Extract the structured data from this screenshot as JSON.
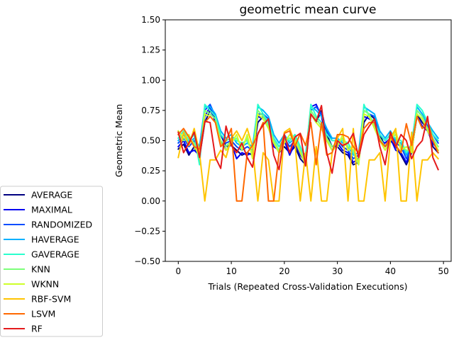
{
  "chart_data": {
    "type": "line",
    "title": "geometric mean curve",
    "xlabel": "Trials (Repeated Cross-Validation Executions)",
    "ylabel": "Geometric Mean",
    "xlim": [
      -2.45,
      51.45
    ],
    "ylim": [
      -0.5,
      1.5
    ],
    "xticks": [
      0,
      10,
      20,
      30,
      40,
      50
    ],
    "yticks": [
      -0.5,
      -0.25,
      0.0,
      0.25,
      0.5,
      0.75,
      1.0,
      1.25,
      1.5
    ],
    "ytick_labels": [
      "−0.50",
      "−0.25",
      "0.00",
      "0.25",
      "0.50",
      "0.75",
      "1.00",
      "1.25",
      "1.50"
    ],
    "grid": false,
    "legend_position": "outside-left-bottom",
    "x": [
      0,
      1,
      2,
      3,
      4,
      5,
      6,
      7,
      8,
      9,
      10,
      11,
      12,
      13,
      14,
      15,
      16,
      17,
      18,
      19,
      20,
      21,
      22,
      23,
      24,
      25,
      26,
      27,
      28,
      29,
      30,
      31,
      32,
      33,
      34,
      35,
      36,
      37,
      38,
      39,
      40,
      41,
      42,
      43,
      44,
      45,
      46,
      47,
      48,
      49
    ],
    "series": [
      {
        "name": "AVERAGE",
        "color": "#000080",
        "values": [
          0.43,
          0.47,
          0.38,
          0.45,
          0.36,
          0.65,
          0.75,
          0.68,
          0.55,
          0.45,
          0.46,
          0.42,
          0.38,
          0.4,
          0.38,
          0.65,
          0.7,
          0.65,
          0.48,
          0.4,
          0.45,
          0.4,
          0.45,
          0.35,
          0.3,
          0.72,
          0.65,
          0.75,
          0.55,
          0.45,
          0.45,
          0.4,
          0.38,
          0.3,
          0.32,
          0.65,
          0.72,
          0.68,
          0.55,
          0.45,
          0.5,
          0.45,
          0.38,
          0.3,
          0.4,
          0.72,
          0.65,
          0.6,
          0.45,
          0.4
        ]
      },
      {
        "name": "MAXIMAL",
        "color": "#0000f1",
        "values": [
          0.45,
          0.5,
          0.4,
          0.42,
          0.38,
          0.7,
          0.78,
          0.65,
          0.5,
          0.42,
          0.48,
          0.35,
          0.4,
          0.38,
          0.4,
          0.7,
          0.68,
          0.62,
          0.45,
          0.42,
          0.5,
          0.38,
          0.48,
          0.38,
          0.32,
          0.78,
          0.8,
          0.7,
          0.5,
          0.42,
          0.48,
          0.42,
          0.4,
          0.32,
          0.35,
          0.7,
          0.68,
          0.65,
          0.5,
          0.48,
          0.52,
          0.42,
          0.4,
          0.32,
          0.42,
          0.7,
          0.62,
          0.58,
          0.48,
          0.42
        ]
      },
      {
        "name": "RANDOMIZED",
        "color": "#004dff",
        "values": [
          0.48,
          0.52,
          0.45,
          0.5,
          0.42,
          0.75,
          0.8,
          0.7,
          0.55,
          0.48,
          0.5,
          0.45,
          0.42,
          0.45,
          0.42,
          0.72,
          0.72,
          0.68,
          0.52,
          0.45,
          0.52,
          0.45,
          0.5,
          0.4,
          0.35,
          0.75,
          0.78,
          0.72,
          0.58,
          0.5,
          0.5,
          0.45,
          0.42,
          0.35,
          0.38,
          0.75,
          0.72,
          0.7,
          0.55,
          0.5,
          0.55,
          0.48,
          0.45,
          0.35,
          0.45,
          0.75,
          0.7,
          0.62,
          0.55,
          0.48
        ]
      },
      {
        "name": "HAVERAGE",
        "color": "#00b1ff",
        "values": [
          0.5,
          0.55,
          0.48,
          0.52,
          0.45,
          0.78,
          0.78,
          0.72,
          0.58,
          0.52,
          0.55,
          0.48,
          0.45,
          0.48,
          0.45,
          0.78,
          0.75,
          0.7,
          0.55,
          0.48,
          0.55,
          0.48,
          0.52,
          0.42,
          0.38,
          0.78,
          0.75,
          0.7,
          0.6,
          0.52,
          0.52,
          0.48,
          0.45,
          0.38,
          0.4,
          0.78,
          0.75,
          0.72,
          0.58,
          0.52,
          0.58,
          0.5,
          0.48,
          0.38,
          0.48,
          0.78,
          0.72,
          0.65,
          0.58,
          0.52
        ]
      },
      {
        "name": "GAVERAGE",
        "color": "#29ffce",
        "values": [
          0.52,
          0.58,
          0.5,
          0.55,
          0.3,
          0.8,
          0.75,
          0.7,
          0.55,
          0.5,
          0.52,
          0.5,
          0.48,
          0.5,
          0.4,
          0.8,
          0.72,
          0.65,
          0.52,
          0.45,
          0.52,
          0.5,
          0.55,
          0.45,
          0.35,
          0.8,
          0.7,
          0.65,
          0.55,
          0.5,
          0.5,
          0.5,
          0.48,
          0.4,
          0.3,
          0.8,
          0.7,
          0.65,
          0.55,
          0.5,
          0.55,
          0.52,
          0.5,
          0.4,
          0.45,
          0.8,
          0.75,
          0.65,
          0.55,
          0.5
        ]
      },
      {
        "name": "KNN",
        "color": "#7dff7a",
        "values": [
          0.55,
          0.5,
          0.52,
          0.48,
          0.35,
          0.75,
          0.72,
          0.68,
          0.5,
          0.45,
          0.5,
          0.52,
          0.45,
          0.52,
          0.38,
          0.75,
          0.7,
          0.62,
          0.5,
          0.42,
          0.5,
          0.52,
          0.52,
          0.42,
          0.32,
          0.75,
          0.68,
          0.62,
          0.52,
          0.45,
          0.48,
          0.52,
          0.45,
          0.42,
          0.32,
          0.75,
          0.72,
          0.62,
          0.52,
          0.45,
          0.52,
          0.55,
          0.45,
          0.42,
          0.42,
          0.75,
          0.7,
          0.6,
          0.52,
          0.45
        ]
      },
      {
        "name": "WKNN",
        "color": "#ceff29",
        "values": [
          0.58,
          0.52,
          0.55,
          0.45,
          0.38,
          0.72,
          0.7,
          0.65,
          0.48,
          0.42,
          0.48,
          0.55,
          0.42,
          0.55,
          0.35,
          0.72,
          0.68,
          0.6,
          0.48,
          0.4,
          0.48,
          0.55,
          0.5,
          0.4,
          0.3,
          0.72,
          0.65,
          0.6,
          0.5,
          0.42,
          0.45,
          0.55,
          0.42,
          0.45,
          0.3,
          0.72,
          0.7,
          0.6,
          0.5,
          0.42,
          0.5,
          0.58,
          0.42,
          0.45,
          0.4,
          0.72,
          0.68,
          0.58,
          0.5,
          0.42
        ]
      },
      {
        "name": "RBF-SVM",
        "color": "#ffc400",
        "values": [
          0.36,
          0.57,
          0.46,
          0.6,
          0.4,
          0.0,
          0.34,
          0.34,
          0.42,
          0.36,
          0.52,
          0.58,
          0.5,
          0.6,
          0.45,
          0.0,
          0.4,
          0.34,
          0.0,
          0.0,
          0.57,
          0.6,
          0.48,
          0.0,
          0.4,
          0.0,
          0.45,
          0.0,
          0.0,
          0.4,
          0.52,
          0.6,
          0.0,
          0.6,
          0.0,
          0.0,
          0.34,
          0.34,
          0.4,
          0.0,
          0.52,
          0.6,
          0.0,
          0.0,
          0.57,
          0.0,
          0.34,
          0.34,
          0.4,
          0.35
        ]
      },
      {
        "name": "LSVM",
        "color": "#ff6800",
        "values": [
          0.55,
          0.6,
          0.53,
          0.45,
          0.43,
          0.65,
          0.7,
          0.65,
          0.45,
          0.5,
          0.6,
          0.0,
          0.0,
          0.4,
          0.46,
          0.55,
          0.65,
          0.0,
          0.0,
          0.4,
          0.56,
          0.58,
          0.45,
          0.56,
          0.46,
          0.65,
          0.3,
          0.65,
          0.38,
          0.4,
          0.55,
          0.55,
          0.53,
          0.45,
          0.4,
          0.6,
          0.65,
          0.65,
          0.5,
          0.45,
          0.53,
          0.46,
          0.4,
          0.64,
          0.46,
          0.7,
          0.6,
          0.67,
          0.5,
          0.4
        ]
      },
      {
        "name": "RF",
        "color": "#e41a1c",
        "values": [
          0.57,
          0.4,
          0.48,
          0.57,
          0.36,
          0.66,
          0.65,
          0.36,
          0.27,
          0.62,
          0.46,
          0.4,
          0.48,
          0.36,
          0.28,
          0.56,
          0.63,
          0.68,
          0.38,
          0.26,
          0.55,
          0.4,
          0.53,
          0.56,
          0.29,
          0.72,
          0.66,
          0.79,
          0.4,
          0.23,
          0.5,
          0.46,
          0.48,
          0.56,
          0.36,
          0.55,
          0.62,
          0.68,
          0.45,
          0.3,
          0.57,
          0.45,
          0.55,
          0.5,
          0.35,
          0.45,
          0.5,
          0.7,
          0.36,
          0.26
        ]
      }
    ]
  }
}
